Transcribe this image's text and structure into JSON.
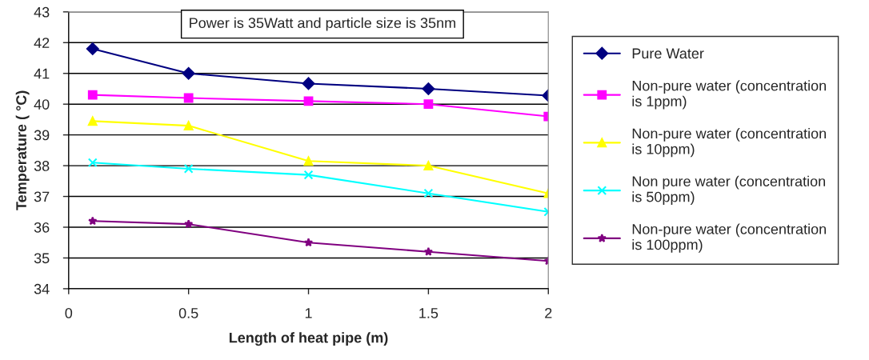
{
  "chart_data": {
    "type": "line",
    "xlabel": "Length of heat pipe (m)",
    "ylabel": "Temperature ( °C)",
    "x": [
      0.1,
      0.5,
      1,
      1.5,
      2
    ],
    "series": [
      {
        "name": "Pure Water",
        "color": "#000080",
        "marker": "diamond",
        "values": [
          41.8,
          41.0,
          40.67,
          40.5,
          40.28
        ]
      },
      {
        "name": "Non-pure water (concentration\nis 1ppm)",
        "color": "#ff00ff",
        "marker": "square",
        "values": [
          40.3,
          40.2,
          40.1,
          40.0,
          39.6
        ]
      },
      {
        "name": "Non-pure water (concentration\nis 10ppm)",
        "color": "#ffff00",
        "marker": "triangle",
        "values": [
          39.45,
          39.3,
          38.15,
          38.0,
          37.1
        ]
      },
      {
        "name": "Non pure water (concentration\nis 50ppm)",
        "color": "#00ffff",
        "marker": "cross",
        "values": [
          38.1,
          37.9,
          37.7,
          37.1,
          36.5
        ]
      },
      {
        "name": "Non-pure water (concentration\nis 100ppm)",
        "color": "#800080",
        "marker": "star",
        "values": [
          36.2,
          36.1,
          35.5,
          35.2,
          34.9
        ]
      }
    ],
    "xlim": [
      0,
      2
    ],
    "xticks": [
      0,
      {
        "value": 0.5,
        "label": "0.5"
      },
      1,
      {
        "value": 1.5,
        "label": "1.5"
      },
      2
    ],
    "ylim": [
      34,
      43
    ],
    "yticks": [
      34,
      35,
      36,
      37,
      38,
      39,
      40,
      41,
      42,
      43
    ],
    "grid": "y",
    "legend": "right",
    "annotations": [
      "Power is 35Watt and particle size is 35nm"
    ]
  }
}
